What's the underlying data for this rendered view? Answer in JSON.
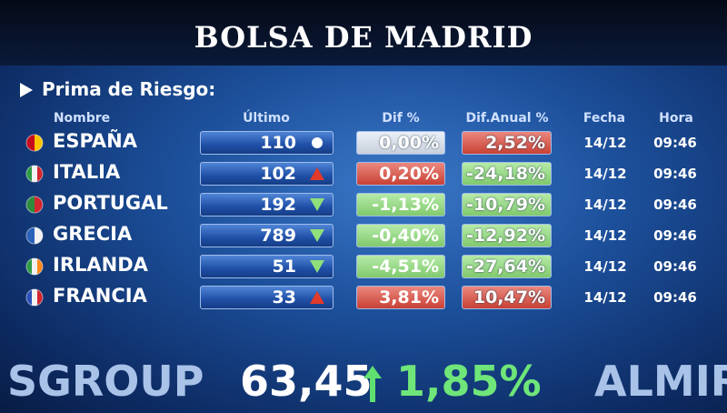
{
  "header": {
    "title": "BOLSA DE MADRID"
  },
  "section": {
    "title": "Prima de Riesgo:"
  },
  "table": {
    "columns": [
      "Nombre",
      "Último",
      "Dif %",
      "Dif.Anual %",
      "Fecha",
      "Hora"
    ],
    "rows": [
      {
        "name": "ESPAÑA",
        "ultimo": "110",
        "trend": "flat",
        "dif": "0,00%",
        "dif_color": "#dfe8f5",
        "anual": "2,52%",
        "anual_color": "#e0483a",
        "fecha": "14/12",
        "hora": "09:46",
        "flag": [
          "#c60b1e",
          "#ffc400"
        ]
      },
      {
        "name": "ITALIA",
        "ultimo": "102",
        "trend": "up",
        "dif": "0,20%",
        "dif_color": "#e0483a",
        "anual": "-24,18%",
        "anual_color": "#8fe07a",
        "fecha": "14/12",
        "hora": "09:46",
        "flag": [
          "#2e9b45",
          "#f2f2f2",
          "#d22630"
        ]
      },
      {
        "name": "PORTUGAL",
        "ultimo": "192",
        "trend": "down",
        "dif": "-1,13%",
        "dif_color": "#8fe07a",
        "anual": "-10,79%",
        "anual_color": "#8fe07a",
        "fecha": "14/12",
        "hora": "09:46",
        "flag": [
          "#2e8b3d",
          "#d22630"
        ]
      },
      {
        "name": "GRECIA",
        "ultimo": "789",
        "trend": "down",
        "dif": "-0,40%",
        "dif_color": "#8fe07a",
        "anual": "-12,92%",
        "anual_color": "#8fe07a",
        "fecha": "14/12",
        "hora": "09:46",
        "flag": [
          "#2a62b8",
          "#f2f2f2"
        ]
      },
      {
        "name": "IRLANDA",
        "ultimo": "51",
        "trend": "down",
        "dif": "-4,51%",
        "dif_color": "#8fe07a",
        "anual": "-27,64%",
        "anual_color": "#8fe07a",
        "fecha": "14/12",
        "hora": "09:46",
        "flag": [
          "#2e9b45",
          "#f2f2f2",
          "#ff8a1c"
        ]
      },
      {
        "name": "FRANCIA",
        "ultimo": "33",
        "trend": "up",
        "dif": "3,81%",
        "dif_color": "#e0483a",
        "anual": "10,47%",
        "anual_color": "#e0483a",
        "fecha": "14/12",
        "hora": "09:46",
        "flag": [
          "#2a4fb8",
          "#f2f2f2",
          "#d22630"
        ]
      }
    ]
  },
  "ticker": {
    "left": "SGROUP",
    "price": "63,45",
    "change": "1,85%",
    "right": "ALMIR"
  }
}
